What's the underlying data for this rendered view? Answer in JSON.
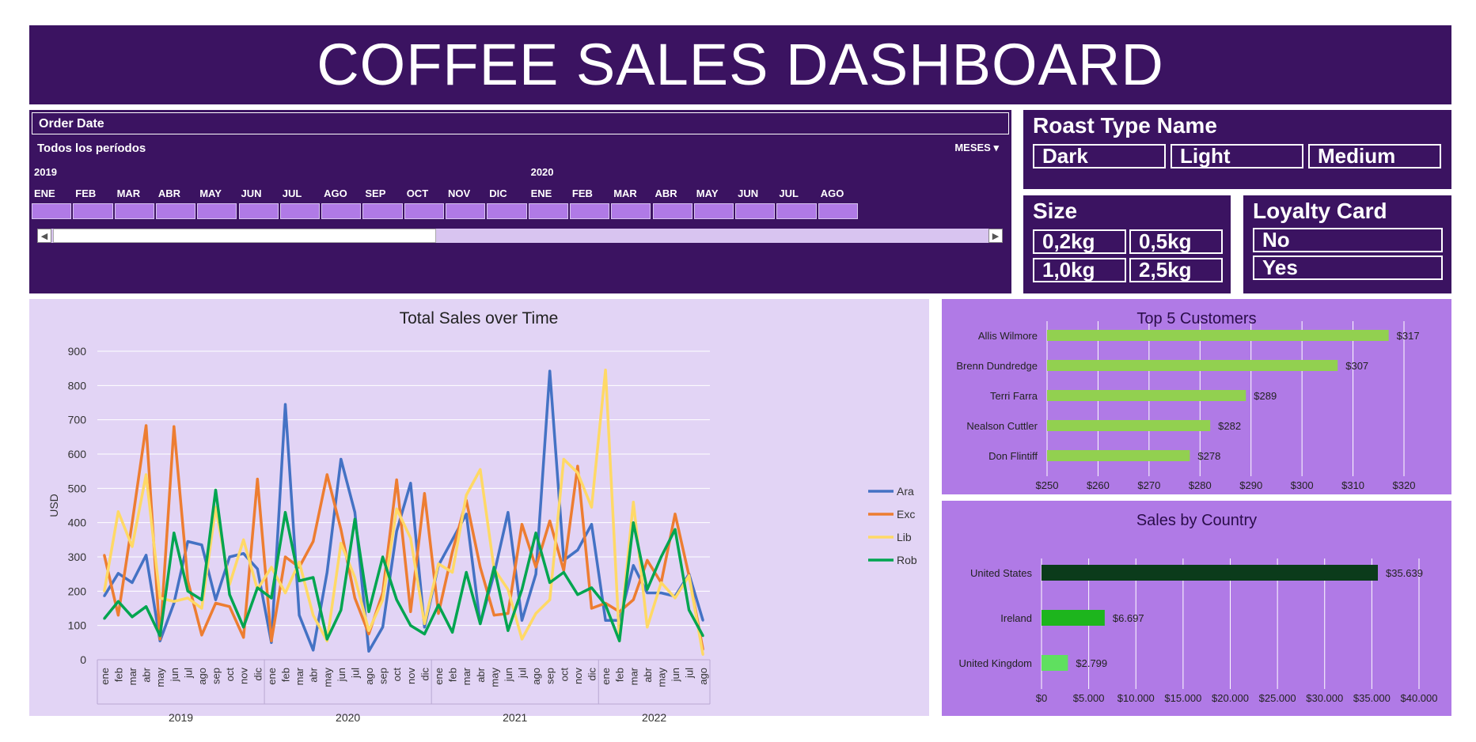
{
  "title": "COFFEE SALES DASHBOARD",
  "timeline": {
    "header": "Order Date",
    "periods_label": "Todos los períodos",
    "meses_label": "MESES ▾",
    "years": [
      "2019",
      "2020"
    ],
    "months": [
      "ENE",
      "FEB",
      "MAR",
      "ABR",
      "MAY",
      "JUN",
      "JUL",
      "AGO",
      "SEP",
      "OCT",
      "NOV",
      "DIC",
      "ENE",
      "FEB",
      "MAR",
      "ABR",
      "MAY",
      "JUN",
      "JUL",
      "AGO"
    ],
    "scroll_left_glyph": "◀",
    "scroll_right_glyph": "▶"
  },
  "roast_slicer": {
    "title": "Roast Type Name",
    "items": [
      "Dark",
      "Light",
      "Medium"
    ]
  },
  "size_slicer": {
    "title": "Size",
    "items": [
      "0,2kg",
      "0,5kg",
      "1,0kg",
      "2,5kg"
    ]
  },
  "loyalty_slicer": {
    "title": "Loyalty Card",
    "items": [
      "No",
      "Yes"
    ]
  },
  "colors": {
    "dark_purple": "#3b1361",
    "light_purple": "#e2d4f5",
    "mid_purple": "#b07ae6",
    "Ara": "#4472c4",
    "Exc": "#ed7d31",
    "Lib": "#ffd966",
    "Rob": "#00a550",
    "top5_bar": "#92d050",
    "us_bar": "#0b3b1b",
    "ireland_bar": "#1db51d",
    "uk_bar": "#5fe05f"
  },
  "chart_data": [
    {
      "type": "line",
      "title": "Total Sales over Time",
      "ylabel": "USD",
      "ylim": [
        0,
        900
      ],
      "yticks": [
        0,
        100,
        200,
        300,
        400,
        500,
        600,
        700,
        800,
        900
      ],
      "month_labels": [
        "ene",
        "feb",
        "mar",
        "abr",
        "may",
        "jun",
        "jul",
        "ago",
        "sep",
        "oct",
        "nov",
        "dic"
      ],
      "years": [
        "2019",
        "2020",
        "2021",
        "2022"
      ],
      "x": [
        "2019-01",
        "2019-02",
        "2019-03",
        "2019-04",
        "2019-05",
        "2019-06",
        "2019-07",
        "2019-08",
        "2019-09",
        "2019-10",
        "2019-11",
        "2019-12",
        "2020-01",
        "2020-02",
        "2020-03",
        "2020-04",
        "2020-05",
        "2020-06",
        "2020-07",
        "2020-08",
        "2020-09",
        "2020-10",
        "2020-11",
        "2020-12",
        "2021-01",
        "2021-02",
        "2021-03",
        "2021-04",
        "2021-05",
        "2021-06",
        "2021-07",
        "2021-08",
        "2021-09",
        "2021-10",
        "2021-11",
        "2021-12",
        "2022-01",
        "2022-02",
        "2022-03",
        "2022-04",
        "2022-05",
        "2022-06",
        "2022-07",
        "2022-08"
      ],
      "legend": "right",
      "grid": true,
      "series": [
        {
          "name": "Ara",
          "values": [
            186,
            252,
            225,
            305,
            55,
            165,
            345,
            335,
            175,
            300,
            310,
            265,
            50,
            745,
            130,
            28,
            255,
            585,
            430,
            25,
            95,
            375,
            515,
            95,
            275,
            350,
            425,
            105,
            250,
            430,
            115,
            250,
            842,
            290,
            320,
            395,
            115,
            115,
            275,
            195,
            195,
            185,
            250,
            115
          ]
        },
        {
          "name": "Exc",
          "values": [
            305,
            130,
            400,
            683,
            60,
            680,
            230,
            72,
            165,
            155,
            65,
            527,
            55,
            300,
            270,
            345,
            540,
            380,
            180,
            75,
            195,
            525,
            140,
            485,
            135,
            315,
            465,
            270,
            130,
            135,
            395,
            270,
            405,
            260,
            565,
            150,
            165,
            140,
            175,
            290,
            225,
            425,
            245,
            30
          ]
        },
        {
          "name": "Lib",
          "values": [
            200,
            432,
            330,
            540,
            180,
            170,
            180,
            150,
            445,
            220,
            350,
            205,
            270,
            195,
            285,
            130,
            55,
            340,
            240,
            85,
            175,
            440,
            355,
            105,
            280,
            255,
            480,
            555,
            265,
            205,
            60,
            135,
            175,
            585,
            545,
            445,
            845,
            55,
            460,
            95,
            225,
            180,
            245,
            15
          ]
        },
        {
          "name": "Rob",
          "values": [
            120,
            170,
            125,
            155,
            70,
            370,
            200,
            175,
            495,
            190,
            95,
            210,
            180,
            430,
            230,
            240,
            60,
            145,
            410,
            140,
            300,
            175,
            100,
            75,
            160,
            80,
            255,
            105,
            270,
            85,
            205,
            370,
            225,
            255,
            190,
            210,
            160,
            55,
            400,
            205,
            300,
            380,
            145,
            70
          ]
        }
      ]
    },
    {
      "type": "bar",
      "title": "Top 5 Customers",
      "orientation": "horizontal",
      "categories": [
        "Allis Wilmore",
        "Brenn Dundredge",
        "Terri Farra",
        "Nealson Cuttler",
        "Don Flintiff"
      ],
      "values": [
        317,
        307,
        289,
        282,
        278
      ],
      "value_labels": [
        "$317",
        "$307",
        "$289",
        "$282",
        "$278"
      ],
      "xlim": [
        250,
        320
      ],
      "xticks": [
        "$250",
        "$260",
        "$270",
        "$280",
        "$290",
        "$300",
        "$310",
        "$320"
      ]
    },
    {
      "type": "bar",
      "title": "Sales by Country",
      "orientation": "horizontal",
      "categories": [
        "United States",
        "Ireland",
        "United Kingdom"
      ],
      "values": [
        35639,
        6697,
        2799
      ],
      "value_labels": [
        "$35.639",
        "$6.697",
        "$2.799"
      ],
      "xlim": [
        0,
        40000
      ],
      "xticks": [
        "$0",
        "$5.000",
        "$10.000",
        "$15.000",
        "$20.000",
        "$25.000",
        "$30.000",
        "$35.000",
        "$40.000"
      ]
    }
  ]
}
